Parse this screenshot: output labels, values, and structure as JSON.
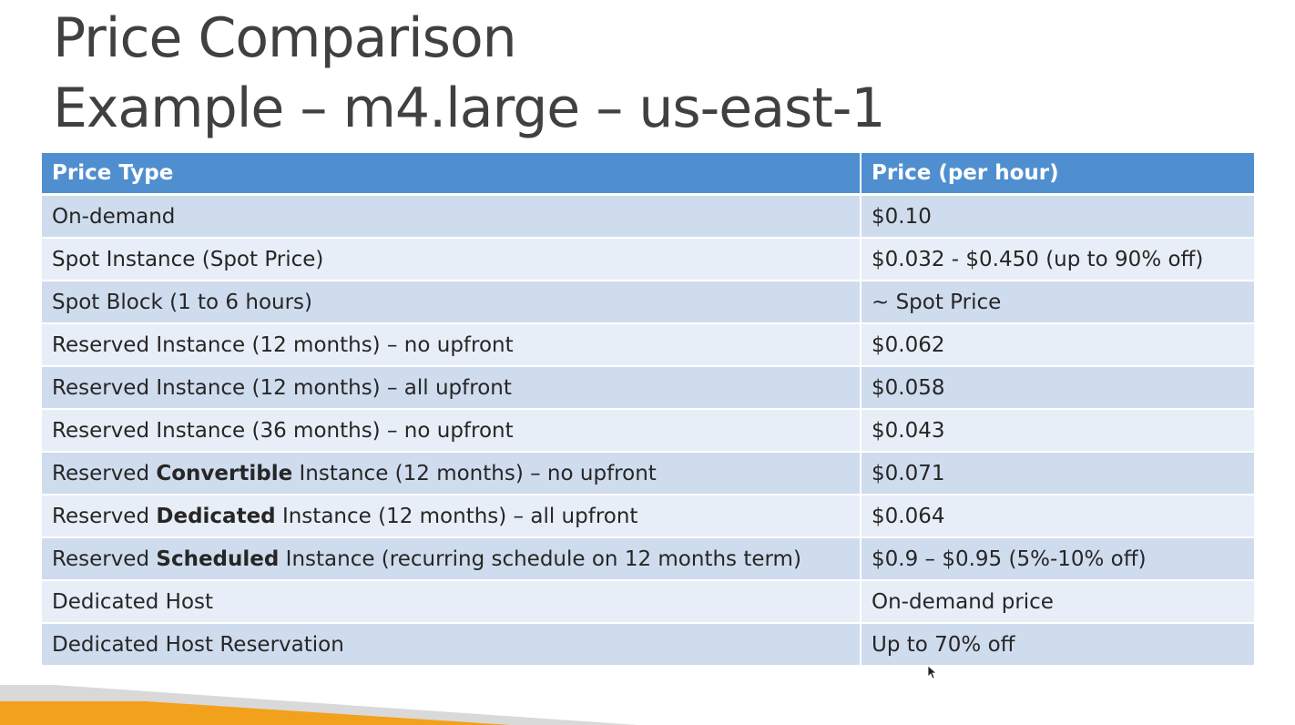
{
  "slide": {
    "title_line1": "Price Comparison",
    "title_line2": "Example – m4.large – us-east-1"
  },
  "table": {
    "headers": [
      "Price Type",
      "Price (per hour)"
    ],
    "rows": [
      {
        "type_pre": "On-demand",
        "type_bold": "",
        "type_post": "",
        "price": "$0.10"
      },
      {
        "type_pre": "Spot Instance (Spot Price)",
        "type_bold": "",
        "type_post": "",
        "price": "$0.032 - $0.450 (up to 90% off)"
      },
      {
        "type_pre": "Spot Block (1 to 6 hours)",
        "type_bold": "",
        "type_post": "",
        "price": "~ Spot Price"
      },
      {
        "type_pre": "Reserved Instance (12 months) – no upfront",
        "type_bold": "",
        "type_post": "",
        "price": "$0.062"
      },
      {
        "type_pre": "Reserved Instance (12 months) – all upfront",
        "type_bold": "",
        "type_post": "",
        "price": "$0.058"
      },
      {
        "type_pre": "Reserved Instance (36 months) – no upfront",
        "type_bold": "",
        "type_post": "",
        "price": "$0.043"
      },
      {
        "type_pre": "Reserved ",
        "type_bold": "Convertible",
        "type_post": " Instance (12 months) – no upfront",
        "price": "$0.071"
      },
      {
        "type_pre": "Reserved ",
        "type_bold": "Dedicated",
        "type_post": " Instance (12 months) – all upfront",
        "price": "$0.064"
      },
      {
        "type_pre": "Reserved ",
        "type_bold": "Scheduled",
        "type_post": " Instance (recurring schedule on 12 months term)",
        "price": "$0.9 – $0.95 (5%-10% off)"
      },
      {
        "type_pre": "Dedicated Host",
        "type_bold": "",
        "type_post": "",
        "price": "On-demand price"
      },
      {
        "type_pre": "Dedicated Host Reservation",
        "type_bold": "",
        "type_post": "",
        "price": "Up to 70% off"
      }
    ]
  },
  "colors": {
    "header_bg": "#4f8fd0",
    "row_dark": "#cfdcee",
    "row_light": "#e8eef7",
    "accent_orange": "#f2a11c",
    "accent_gray": "#d9d9d9"
  }
}
